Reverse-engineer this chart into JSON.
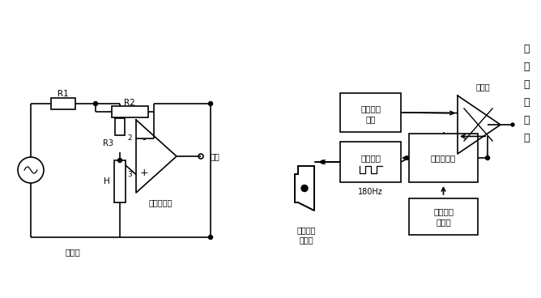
{
  "bg_color": "#ffffff",
  "line_color": "#000000",
  "fig_width": 6.68,
  "fig_height": 3.68,
  "dpi": 100,
  "labels": {
    "R1": "R1",
    "R2": "R2",
    "R3": "R3",
    "H": "H",
    "sensor": "传感器",
    "op_amp": "运算放大器",
    "output": "输出",
    "ceramic_sensor_line1": "陶瓷湿度",
    "ceramic_sensor_line2": "传感器",
    "oscillator": "振荡电路",
    "freq": "180Hz",
    "temp_comp_line1": "温度补偿",
    "temp_comp_line2": "电路",
    "comparator": "比较器",
    "micro": "微型计算机",
    "remote_line1": "遥控湿度",
    "remote_line2": "调节器",
    "hum_data_1": "湿",
    "hum_data_2": "度",
    "hum_data_3": "检",
    "hum_data_4": "测",
    "hum_data_5": "数",
    "hum_data_6": "据"
  }
}
